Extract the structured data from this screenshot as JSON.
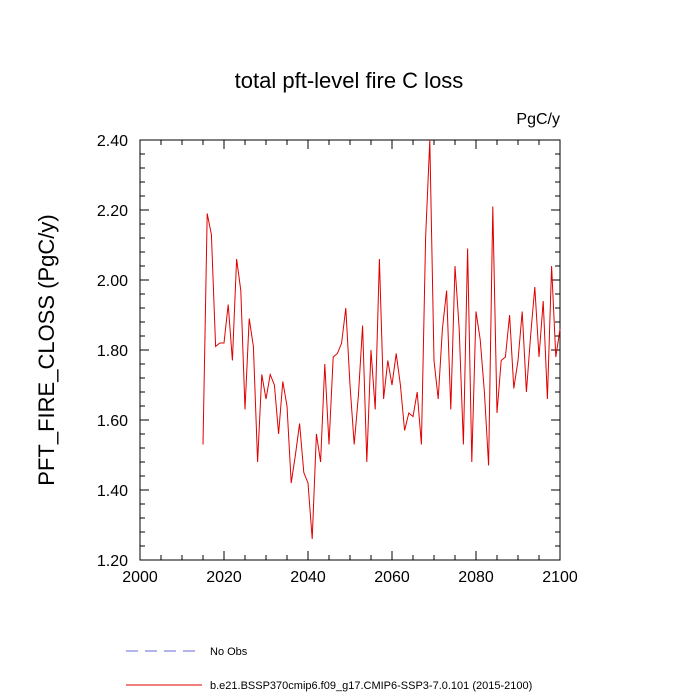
{
  "chart_data": {
    "type": "line",
    "title": "total pft-level fire C loss",
    "units": "PgC/y",
    "xlabel": "",
    "ylabel": "PFT_FIRE_CLOSS  (PgC/y)",
    "xlim": [
      2000,
      2100
    ],
    "ylim": [
      1.2,
      2.4
    ],
    "xticks": [
      2000,
      2020,
      2040,
      2060,
      2080,
      2100
    ],
    "xtick_labels": [
      "2000",
      "2020",
      "2040",
      "2060",
      "2080",
      "2100"
    ],
    "yticks": [
      1.2,
      1.4,
      1.6,
      1.8,
      2.0,
      2.2,
      2.4
    ],
    "ytick_labels": [
      "1.20",
      "1.40",
      "1.60",
      "1.80",
      "2.00",
      "2.20",
      "2.40"
    ],
    "x_minor_step": 5,
    "y_minor_step": 0.04,
    "series": [
      {
        "name": "b.e21.BSSP370cmip6.f09_g17.CMIP6-SSP3-7.0.101 (2015-2100)",
        "color": "#e00000",
        "style": "solid",
        "x": [
          2015,
          2016,
          2017,
          2018,
          2019,
          2020,
          2021,
          2022,
          2023,
          2024,
          2025,
          2026,
          2027,
          2028,
          2029,
          2030,
          2031,
          2032,
          2033,
          2034,
          2035,
          2036,
          2037,
          2038,
          2039,
          2040,
          2041,
          2042,
          2043,
          2044,
          2045,
          2046,
          2047,
          2048,
          2049,
          2050,
          2051,
          2052,
          2053,
          2054,
          2055,
          2056,
          2057,
          2058,
          2059,
          2060,
          2061,
          2062,
          2063,
          2064,
          2065,
          2066,
          2067,
          2068,
          2069,
          2070,
          2071,
          2072,
          2073,
          2074,
          2075,
          2076,
          2077,
          2078,
          2079,
          2080,
          2081,
          2082,
          2083,
          2084,
          2085,
          2086,
          2087,
          2088,
          2089,
          2090,
          2091,
          2092,
          2093,
          2094,
          2095,
          2096,
          2097,
          2098,
          2099,
          2100
        ],
        "values": [
          1.53,
          2.19,
          2.13,
          1.81,
          1.82,
          1.82,
          1.93,
          1.77,
          2.06,
          1.97,
          1.63,
          1.89,
          1.81,
          1.48,
          1.73,
          1.66,
          1.73,
          1.7,
          1.56,
          1.71,
          1.64,
          1.42,
          1.5,
          1.59,
          1.45,
          1.42,
          1.26,
          1.56,
          1.48,
          1.76,
          1.53,
          1.78,
          1.79,
          1.82,
          1.92,
          1.7,
          1.53,
          1.67,
          1.87,
          1.48,
          1.8,
          1.63,
          2.06,
          1.66,
          1.77,
          1.7,
          1.79,
          1.7,
          1.57,
          1.62,
          1.61,
          1.68,
          1.53,
          2.12,
          2.4,
          1.77,
          1.66,
          1.86,
          1.97,
          1.63,
          2.04,
          1.86,
          1.53,
          2.09,
          1.48,
          1.91,
          1.83,
          1.68,
          1.47,
          2.21,
          1.62,
          1.77,
          1.78,
          1.9,
          1.69,
          1.77,
          1.91,
          1.68,
          1.84,
          1.98,
          1.78,
          1.94,
          1.66,
          2.04,
          1.78,
          1.86
        ]
      },
      {
        "name": "No Obs",
        "color": "#6a6ad8",
        "style": "dashed",
        "x": [],
        "values": []
      }
    ],
    "legend_position": "bottom-left"
  }
}
